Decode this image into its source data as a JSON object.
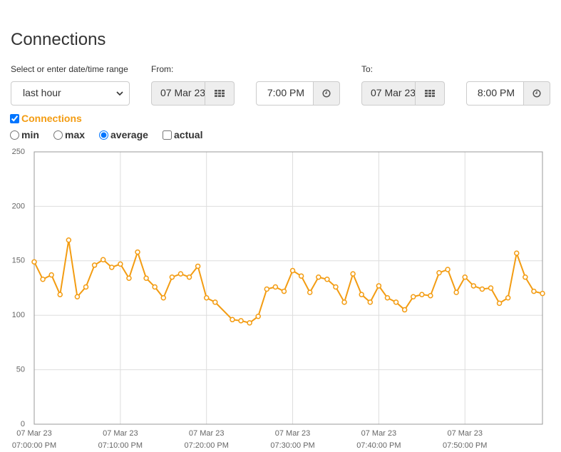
{
  "header": {
    "title": "Connections"
  },
  "range": {
    "label": "Select or enter date/time range",
    "preset": "last hour"
  },
  "from": {
    "label": "From:",
    "date": "07 Mar 23",
    "time": "7:00 PM"
  },
  "to": {
    "label": "To:",
    "date": "07 Mar 23",
    "time": "8:00 PM"
  },
  "series_toggle": {
    "label": "Connections",
    "checked": true
  },
  "statistics": [
    {
      "label": "min",
      "kind": "radio",
      "checked": false
    },
    {
      "label": "max",
      "kind": "radio",
      "checked": false
    },
    {
      "label": "average",
      "kind": "radio",
      "checked": true
    },
    {
      "label": "actual",
      "kind": "checkbox",
      "checked": false
    }
  ],
  "chart_data": {
    "type": "line",
    "x": [
      0,
      1,
      2,
      3,
      4,
      5,
      6,
      7,
      8,
      9,
      10,
      11,
      12,
      13,
      14,
      15,
      16,
      17,
      18,
      19,
      20,
      21,
      23,
      24,
      25,
      26,
      27,
      28,
      29,
      30,
      31,
      32,
      33,
      34,
      35,
      36,
      37,
      38,
      39,
      40,
      41,
      42,
      43,
      44,
      45,
      46,
      47,
      48,
      49,
      50,
      51,
      52,
      53,
      54,
      55,
      56,
      57,
      58,
      59
    ],
    "series": [
      {
        "name": "Connections",
        "color": "#f39c12",
        "values": [
          149,
          133,
          137,
          119,
          169,
          117,
          126,
          146,
          151,
          144,
          147,
          134,
          158,
          134,
          126,
          116,
          135,
          138,
          135,
          145,
          116,
          112,
          96,
          95,
          93,
          99,
          124,
          126,
          122,
          141,
          136,
          121,
          135,
          133,
          126,
          112,
          138,
          119,
          112,
          127,
          116,
          112,
          105,
          117,
          119,
          118,
          139,
          142,
          121,
          135,
          127,
          124,
          125,
          111,
          116,
          157,
          135,
          122,
          120
        ]
      }
    ],
    "xlim": [
      0,
      59
    ],
    "xticks": [
      {
        "value": 0,
        "label": [
          "07 Mar 23",
          "07:00:00 PM"
        ]
      },
      {
        "value": 10,
        "label": [
          "07 Mar 23",
          "07:10:00 PM"
        ]
      },
      {
        "value": 20,
        "label": [
          "07 Mar 23",
          "07:20:00 PM"
        ]
      },
      {
        "value": 30,
        "label": [
          "07 Mar 23",
          "07:30:00 PM"
        ]
      },
      {
        "value": 40,
        "label": [
          "07 Mar 23",
          "07:40:00 PM"
        ]
      },
      {
        "value": 50,
        "label": [
          "07 Mar 23",
          "07:50:00 PM"
        ]
      }
    ],
    "ylim": [
      0,
      250
    ],
    "yticks": [
      0,
      50,
      100,
      150,
      200,
      250
    ],
    "grid": true
  }
}
